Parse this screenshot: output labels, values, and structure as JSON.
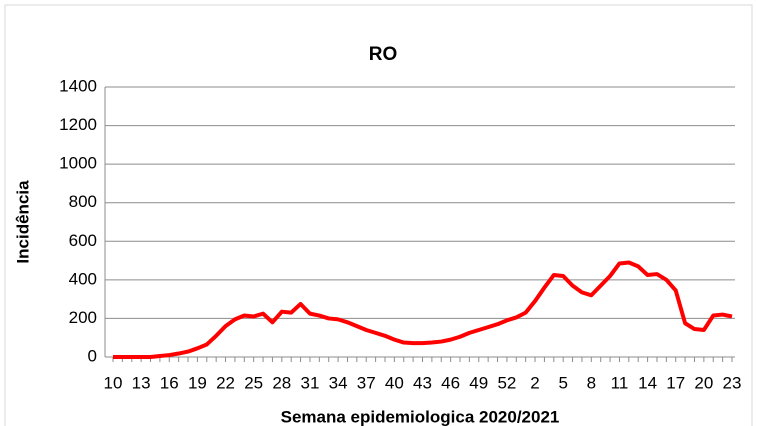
{
  "chart_data": {
    "type": "line",
    "title": "RO",
    "x_label": "Semana epidemiologica 2020/2021",
    "y_label": "Incidência",
    "categories": [
      "10",
      null,
      null,
      "13",
      null,
      null,
      "16",
      null,
      null,
      "19",
      null,
      null,
      "22",
      null,
      null,
      "25",
      null,
      null,
      "28",
      null,
      null,
      "31",
      null,
      null,
      "34",
      null,
      null,
      "37",
      null,
      null,
      "40",
      null,
      null,
      "43",
      null,
      null,
      "46",
      null,
      null,
      "49",
      null,
      null,
      "52",
      null,
      null,
      "2",
      null,
      null,
      "5",
      null,
      null,
      "8",
      null,
      null,
      "11",
      null,
      null,
      "14",
      null,
      null,
      "17",
      null,
      null,
      "20",
      null,
      null,
      "23"
    ],
    "series": [
      {
        "name": "RO",
        "color": "#ff0000",
        "values": [
          0,
          0,
          0,
          0,
          0,
          5,
          10,
          18,
          28,
          45,
          65,
          110,
          160,
          195,
          215,
          210,
          225,
          180,
          235,
          230,
          275,
          225,
          215,
          200,
          195,
          180,
          160,
          140,
          125,
          110,
          90,
          75,
          72,
          72,
          75,
          80,
          90,
          105,
          125,
          140,
          155,
          170,
          190,
          205,
          230,
          290,
          360,
          425,
          420,
          370,
          335,
          320,
          370,
          420,
          485,
          490,
          470,
          425,
          430,
          400,
          345,
          175,
          145,
          140,
          215,
          220,
          210
        ]
      }
    ],
    "ylim": [
      0,
      1400
    ],
    "yticks": [
      0,
      200,
      400,
      600,
      800,
      1000,
      1200,
      1400
    ],
    "grid": true
  }
}
